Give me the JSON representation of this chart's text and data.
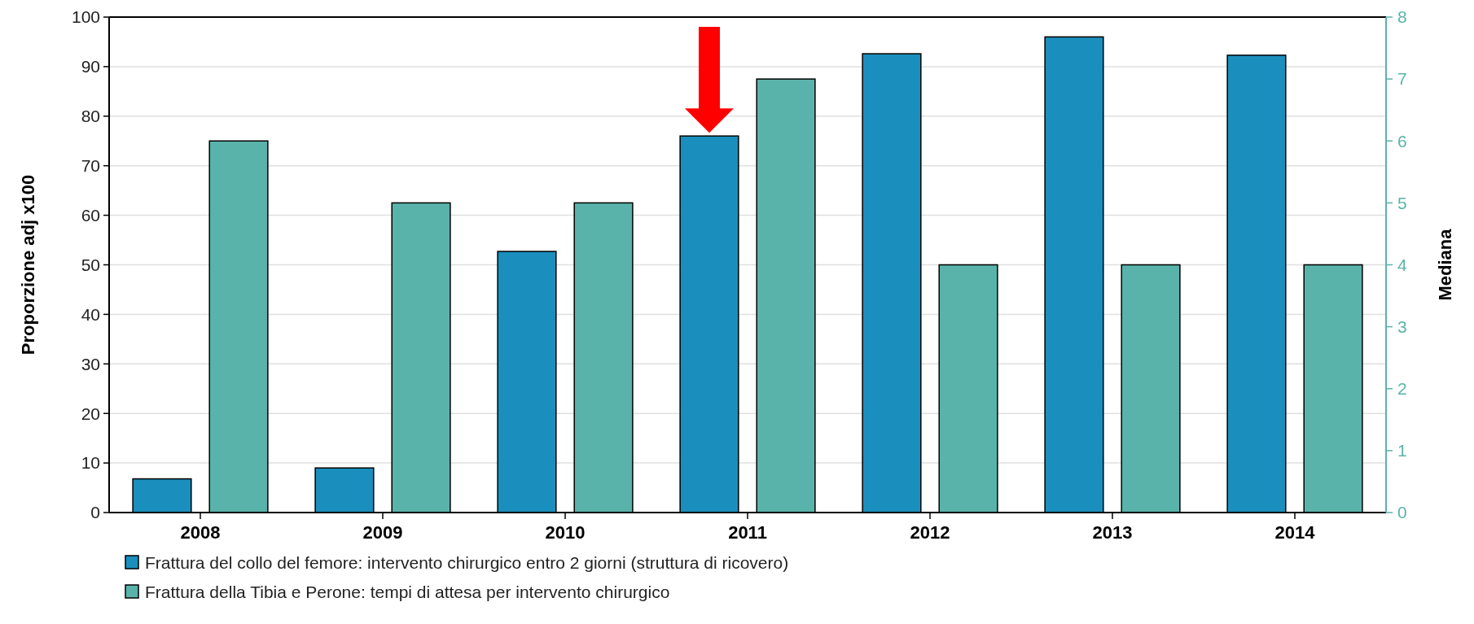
{
  "chart_data": {
    "type": "bar",
    "categories": [
      "2008",
      "2009",
      "2010",
      "2011",
      "2012",
      "2013",
      "2014"
    ],
    "series": [
      {
        "name": "Frattura del collo del femore: intervento chirurgico entro 2 giorni (struttura di ricovero)",
        "color": "#1a8fbd",
        "values": [
          6.8,
          9,
          52.7,
          76,
          92.6,
          96,
          92.3
        ]
      },
      {
        "name": "Frattura della Tibia e Perone: tempi di attesa per intervento chirurgico",
        "color": "#5ab3aa",
        "axis": "y2",
        "values": [
          6,
          5,
          5,
          7,
          4,
          4,
          4
        ]
      }
    ],
    "ylabel": "Proporzione adj x100",
    "y2label": "Mediana",
    "ylim": [
      0,
      100
    ],
    "yticks": [
      0,
      10,
      20,
      30,
      40,
      50,
      60,
      70,
      80,
      90,
      100
    ],
    "y2lim": [
      0,
      8
    ],
    "y2ticks": [
      0,
      1,
      2,
      3,
      4,
      5,
      6,
      7,
      8
    ],
    "grid": "y",
    "legend": "bottom"
  }
}
